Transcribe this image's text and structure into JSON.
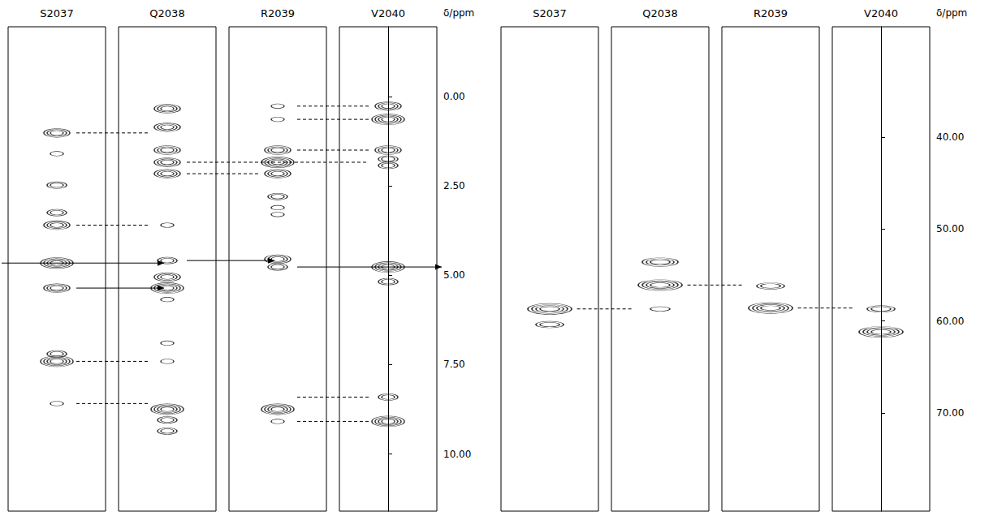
{
  "chart_data": [
    {
      "type": "strip",
      "ylabel": "δ/ppm",
      "ylim": [
        -1.95,
        11.6
      ],
      "yticks": [
        {
          "value": 0,
          "label": "0.00"
        },
        {
          "value": 2.5,
          "label": "2.50"
        },
        {
          "value": 5,
          "label": "5.00"
        },
        {
          "value": 7.5,
          "label": "7.50"
        },
        {
          "value": 10,
          "label": "10.00"
        }
      ],
      "strips": [
        {
          "name": "S2037",
          "peaks": [
            {
              "ppm": 1.02,
              "level": 3
            },
            {
              "ppm": 1.6,
              "level": 1
            },
            {
              "ppm": 2.48,
              "level": 2
            },
            {
              "ppm": 3.25,
              "level": 2
            },
            {
              "ppm": 3.6,
              "level": 3
            },
            {
              "ppm": 4.66,
              "level": 4
            },
            {
              "ppm": 5.36,
              "level": 3
            },
            {
              "ppm": 7.2,
              "level": 2
            },
            {
              "ppm": 7.41,
              "level": 4
            },
            {
              "ppm": 8.59,
              "level": 1
            }
          ]
        },
        {
          "name": "Q2038",
          "peaks": [
            {
              "ppm": 0.34,
              "level": 3
            },
            {
              "ppm": 0.86,
              "level": 3
            },
            {
              "ppm": 1.5,
              "level": 3
            },
            {
              "ppm": 1.84,
              "level": 3
            },
            {
              "ppm": 2.16,
              "level": 3
            },
            {
              "ppm": 3.6,
              "level": 1
            },
            {
              "ppm": 4.59,
              "level": 2
            },
            {
              "ppm": 5.05,
              "level": 3
            },
            {
              "ppm": 5.36,
              "level": 4
            },
            {
              "ppm": 5.68,
              "level": 1
            },
            {
              "ppm": 6.9,
              "level": 1
            },
            {
              "ppm": 7.41,
              "level": 1
            },
            {
              "ppm": 8.75,
              "level": 4
            },
            {
              "ppm": 9.05,
              "level": 2
            },
            {
              "ppm": 9.36,
              "level": 2
            }
          ]
        },
        {
          "name": "R2039",
          "peaks": [
            {
              "ppm": 0.27,
              "level": 1
            },
            {
              "ppm": 0.64,
              "level": 1
            },
            {
              "ppm": 1.5,
              "level": 3
            },
            {
              "ppm": 1.84,
              "level": 4
            },
            {
              "ppm": 2.16,
              "level": 3
            },
            {
              "ppm": 2.8,
              "level": 2
            },
            {
              "ppm": 3.11,
              "level": 1
            },
            {
              "ppm": 3.3,
              "level": 1
            },
            {
              "ppm": 4.55,
              "level": 3
            },
            {
              "ppm": 4.77,
              "level": 2
            },
            {
              "ppm": 8.75,
              "level": 4
            },
            {
              "ppm": 9.09,
              "level": 1
            }
          ]
        },
        {
          "name": "V2040",
          "peaks": [
            {
              "ppm": 0.27,
              "level": 3
            },
            {
              "ppm": 0.64,
              "level": 4
            },
            {
              "ppm": 1.5,
              "level": 3
            },
            {
              "ppm": 1.75,
              "level": 2
            },
            {
              "ppm": 1.93,
              "level": 2
            },
            {
              "ppm": 4.77,
              "level": 4
            },
            {
              "ppm": 5.18,
              "level": 2
            },
            {
              "ppm": 8.41,
              "level": 2
            },
            {
              "ppm": 9.09,
              "level": 4
            }
          ]
        }
      ],
      "links": [
        {
          "from": "S2037",
          "to": "Q2038",
          "ppm": 1.02,
          "line_style": "dashed"
        },
        {
          "from": "S2037",
          "to": "Q2038",
          "ppm": 3.6,
          "line_style": "dashed"
        },
        {
          "from": "S2037",
          "to": "Q2038",
          "ppm": 7.41,
          "line_style": "dashed"
        },
        {
          "from": "S2037",
          "to": "Q2038",
          "ppm": 8.59,
          "line_style": "dashed"
        },
        {
          "from": "Q2038",
          "to": "V2040",
          "ppm": 1.84,
          "line_style": "dashed"
        },
        {
          "from": "Q2038",
          "to": "R2039",
          "ppm": 2.16,
          "line_style": "dashed"
        },
        {
          "from": "R2039",
          "to": "V2040",
          "ppm": 0.27,
          "line_style": "dashed"
        },
        {
          "from": "R2039",
          "to": "V2040",
          "ppm": 0.64,
          "line_style": "dashed"
        },
        {
          "from": "R2039",
          "to": "V2040",
          "ppm": 1.5,
          "line_style": "dashed"
        },
        {
          "from": "R2039",
          "to": "V2040",
          "ppm": 8.41,
          "line_style": "dashed"
        },
        {
          "from": "R2039",
          "to": "V2040",
          "ppm": 9.09,
          "line_style": "dashed"
        },
        {
          "from": null,
          "to": "Q2038",
          "ppm": 4.66,
          "line_style": "solid",
          "marker": "arrow"
        },
        {
          "from": "S2037",
          "to": "Q2038",
          "ppm": 5.36,
          "line_style": "solid",
          "marker": "arrow"
        },
        {
          "from": "Q2038",
          "to": "R2039",
          "ppm": 4.59,
          "line_style": "solid",
          "marker": "arrow"
        },
        {
          "from": "R2039",
          "to": null,
          "ppm": 4.77,
          "line_style": "solid",
          "marker": "arrow"
        }
      ]
    },
    {
      "type": "strip",
      "ylabel": "δ/ppm",
      "ylim": [
        28,
        80.7
      ],
      "yticks": [
        {
          "value": 40,
          "label": "40.00"
        },
        {
          "value": 50,
          "label": "50.00"
        },
        {
          "value": 60,
          "label": "60.00"
        },
        {
          "value": 70,
          "label": "70.00"
        }
      ],
      "strips": [
        {
          "name": "S2037",
          "peaks": [
            {
              "ppm": 58.7,
              "level": 4
            },
            {
              "ppm": 60.4,
              "level": 2
            }
          ]
        },
        {
          "name": "Q2038",
          "peaks": [
            {
              "ppm": 53.6,
              "level": 3
            },
            {
              "ppm": 56.1,
              "level": 4
            },
            {
              "ppm": 58.7,
              "level": 1
            }
          ]
        },
        {
          "name": "R2039",
          "peaks": [
            {
              "ppm": 56.2,
              "level": 2
            },
            {
              "ppm": 58.6,
              "level": 4
            }
          ]
        },
        {
          "name": "V2040",
          "peaks": [
            {
              "ppm": 58.7,
              "level": 2
            },
            {
              "ppm": 61.2,
              "level": 4
            }
          ]
        }
      ],
      "links": [
        {
          "from": "S2037",
          "to": "Q2038",
          "ppm": 58.7,
          "line_style": "dashed"
        },
        {
          "from": "Q2038",
          "to": "R2039",
          "ppm": 56.1,
          "line_style": "dashed"
        },
        {
          "from": "R2039",
          "to": "V2040",
          "ppm": 58.6,
          "line_style": "dashed"
        }
      ]
    }
  ]
}
